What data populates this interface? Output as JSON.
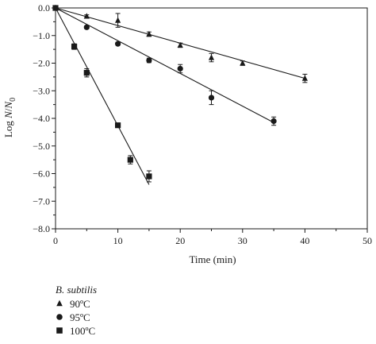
{
  "chart_data": {
    "type": "scatter",
    "xlabel": "Time (min)",
    "ylabel": "Log N/N0",
    "xlim": [
      0,
      50
    ],
    "ylim": [
      -8,
      0
    ],
    "x_ticks": [
      0,
      10,
      20,
      30,
      40,
      50
    ],
    "y_ticks": [
      0,
      -1,
      -2,
      -3,
      -4,
      -5,
      -6,
      -7,
      -8
    ],
    "x_tick_labels": [
      "0",
      "10",
      "20",
      "30",
      "40",
      "50"
    ],
    "y_tick_labels": [
      "0.0",
      "−1.0",
      "−2.0",
      "−3.0",
      "−4.0",
      "−5.0",
      "−6.0",
      "−7.0",
      "−8.0"
    ],
    "grid": false,
    "legend_title": "B. subtilis",
    "legend_position": "below",
    "series": [
      {
        "name": "90ºC",
        "marker": "triangle",
        "x": [
          0,
          5,
          10,
          15,
          20,
          25,
          30,
          40
        ],
        "y": [
          0,
          -0.3,
          -0.45,
          -0.95,
          -1.35,
          -1.8,
          -2.0,
          -2.55
        ],
        "error": [
          0,
          0.05,
          0.25,
          0.08,
          0.08,
          0.15,
          0.08,
          0.15
        ],
        "fit": {
          "x": [
            0,
            40
          ],
          "y": [
            0,
            -2.55
          ]
        }
      },
      {
        "name": "95ºC",
        "marker": "circle",
        "x": [
          0,
          5,
          10,
          15,
          20,
          25,
          35
        ],
        "y": [
          0,
          -0.7,
          -1.3,
          -1.9,
          -2.2,
          -3.25,
          -4.1
        ],
        "error": [
          0,
          0.05,
          0.05,
          0.08,
          0.15,
          0.25,
          0.15
        ],
        "fit": {
          "x": [
            0,
            35
          ],
          "y": [
            0,
            -4.15
          ]
        }
      },
      {
        "name": "100ºC",
        "marker": "square",
        "x": [
          0,
          3,
          5,
          10,
          12,
          15
        ],
        "y": [
          0,
          -1.4,
          -2.35,
          -4.25,
          -5.5,
          -6.1
        ],
        "error": [
          0,
          0.1,
          0.15,
          0.05,
          0.15,
          0.2
        ],
        "fit": {
          "x": [
            0,
            15
          ],
          "y": [
            0,
            -6.4
          ]
        }
      }
    ]
  }
}
